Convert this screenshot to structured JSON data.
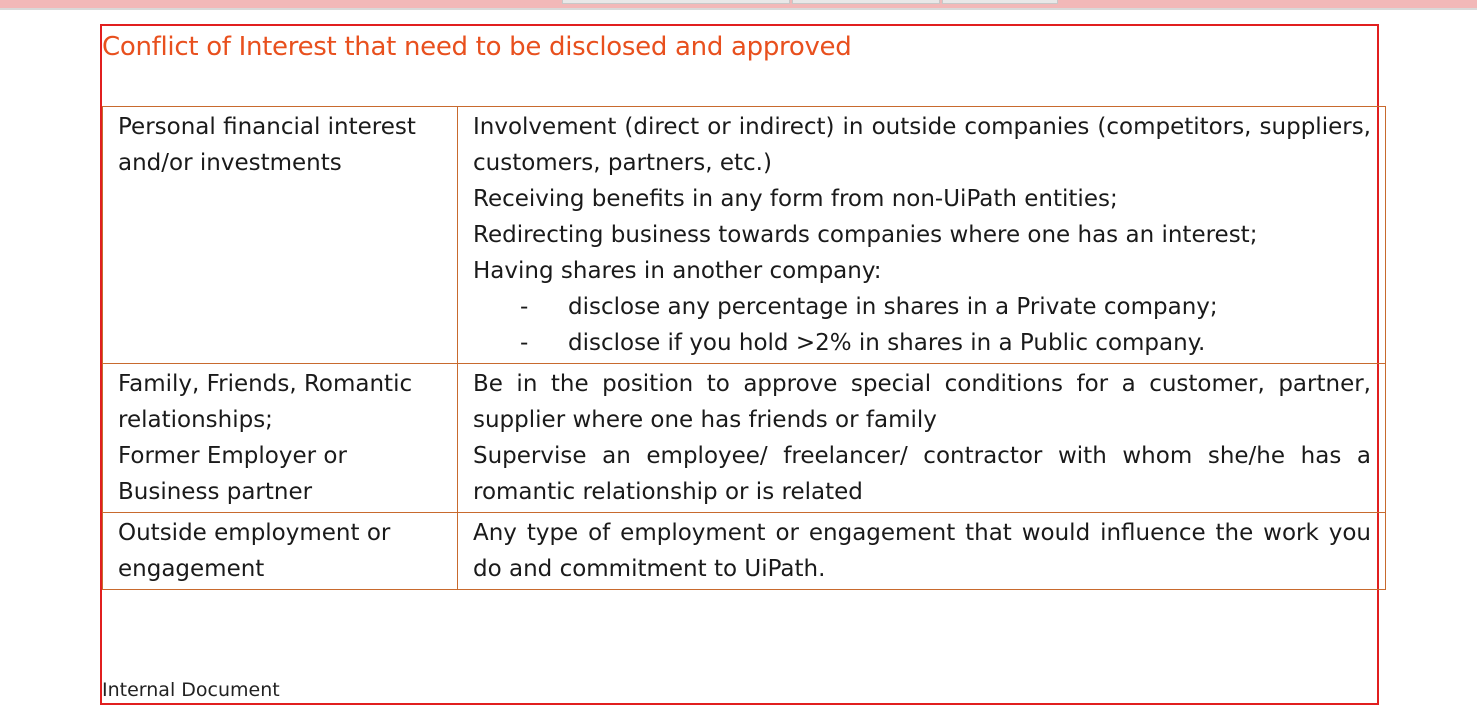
{
  "slide": {
    "title": "Conflict of Interest that need to be disclosed and approved",
    "footer": "Internal Document"
  },
  "colors": {
    "title": "#e8501e",
    "frame": "#e11f1f",
    "table_border": "#c86a2e"
  },
  "table": {
    "rows": [
      {
        "category": [
          "Personal financial interest",
          "and/or investments"
        ],
        "lines": [
          "Involvement (direct or indirect) in outside companies (competitors, suppliers, customers, partners, etc.)",
          "Receiving benefits in any form from non-UiPath entities;",
          "Redirecting business towards companies where one has an interest;",
          "Having shares in another company:"
        ],
        "bullets": [
          "disclose any percentage in shares in a Private company;",
          "disclose if you hold >2% in shares in a Public company."
        ]
      },
      {
        "category": [
          "Family, Friends, Romantic",
          "relationships;",
          "Former Employer or",
          "Business partner"
        ],
        "lines": [
          "Be in the position to approve special conditions for a customer, partner, supplier where one has friends or family",
          "Supervise an employee/ freelancer/ contractor with whom she/he has a romantic relationship or is related"
        ]
      },
      {
        "category": [
          "Outside employment or",
          "engagement"
        ],
        "lines": [
          "Any type of employment or engagement that would influence the work you do and commitment to UiPath."
        ]
      }
    ],
    "bullet_marker": "-"
  }
}
